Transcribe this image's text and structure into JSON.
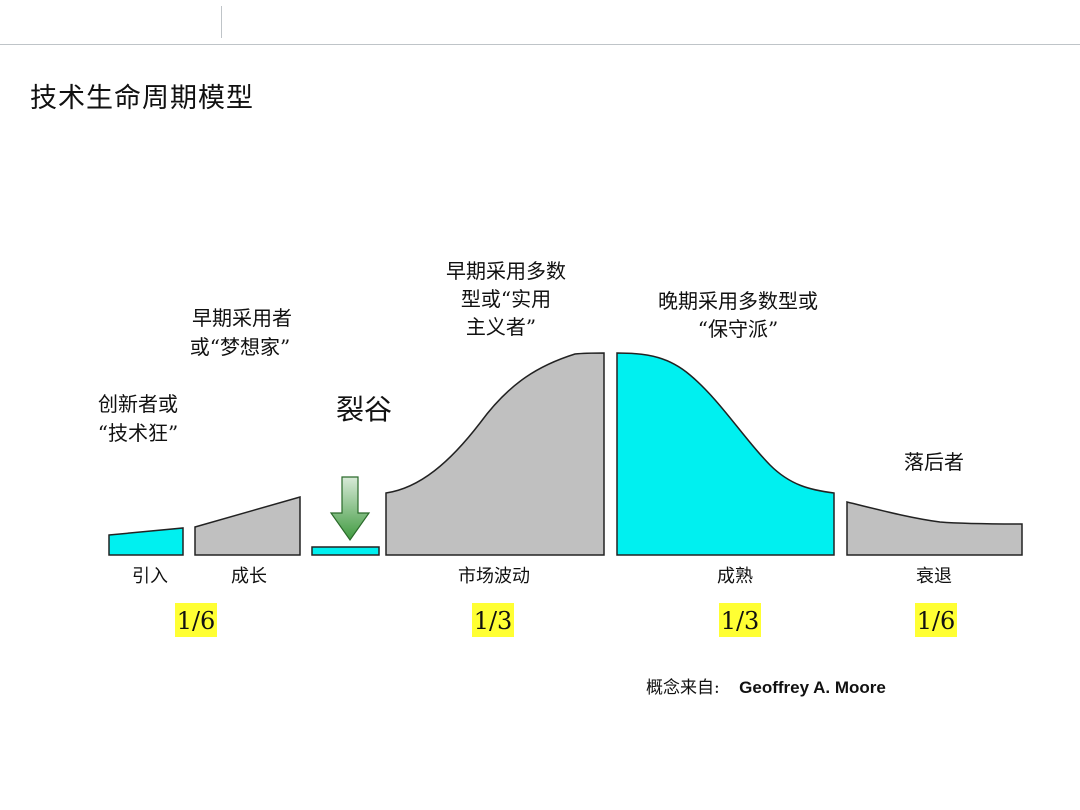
{
  "title": "技术生命周期模型",
  "chasm": {
    "label": "裂谷"
  },
  "groups": [
    {
      "lines": [
        "创新者或",
        "“技术狂”"
      ]
    },
    {
      "lines": [
        "早期采用者",
        "或“梦想家”"
      ]
    },
    {
      "lines": [
        "早期采用多数",
        "型或“实用",
        "主义者”"
      ]
    },
    {
      "lines": [
        "晚期采用多数型或",
        "“保守派”"
      ]
    },
    {
      "lines": [
        "落后者"
      ]
    }
  ],
  "stages": [
    "引入",
    "成长",
    "市场波动",
    "成熟",
    "衰退"
  ],
  "fractions": [
    "1/6",
    "1/3",
    "1/3",
    "1/6"
  ],
  "source": {
    "label": "概念来自:",
    "name": "Geoffrey A. Moore"
  },
  "colors": {
    "highlight_segment": "#00f0f0",
    "normal_segment": "#c0c0c0",
    "segment_outline": "#222222",
    "fraction_highlight": "#ffff33",
    "arrow_fill": "#5fae5f"
  },
  "icons": [
    "down-arrow-icon"
  ]
}
